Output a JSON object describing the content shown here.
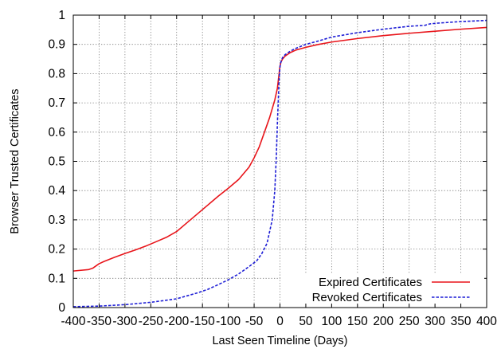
{
  "chart_data": {
    "type": "line",
    "title": "",
    "xlabel": "Last Seen Timeline (Days)",
    "ylabel": "Browser Trusted Certificates",
    "xlim": [
      -400,
      400
    ],
    "ylim": [
      0,
      1
    ],
    "x_ticks": [
      -400,
      -350,
      -300,
      -250,
      -200,
      -150,
      -100,
      -50,
      0,
      50,
      100,
      150,
      200,
      250,
      300,
      350,
      400
    ],
    "x_tick_labels": [
      "-400",
      "-350",
      "-300",
      "-250",
      "-200",
      "-150",
      "-100",
      "-50",
      "0",
      "50",
      "100",
      "150",
      "200",
      "250",
      "300",
      "350",
      "400"
    ],
    "y_ticks": [
      0,
      0.1,
      0.2,
      0.3,
      0.4,
      0.5,
      0.6,
      0.7,
      0.8,
      0.9,
      1
    ],
    "y_tick_labels": [
      "0",
      "0.1",
      "0.2",
      "0.3",
      "0.4",
      "0.5",
      "0.6",
      "0.7",
      "0.8",
      "0.9",
      "1"
    ],
    "grid": true,
    "legend_position": "bottom-right",
    "series": [
      {
        "name": "Expired Certificates",
        "color": "#e8141a",
        "style": "solid",
        "x": [
          -400,
          -370,
          -362,
          -350,
          -340,
          -320,
          -300,
          -280,
          -260,
          -240,
          -220,
          -200,
          -180,
          -160,
          -140,
          -120,
          -100,
          -80,
          -60,
          -50,
          -40,
          -30,
          -20,
          -15,
          -10,
          -5,
          -3,
          -1,
          0,
          2,
          5,
          10,
          20,
          30,
          50,
          75,
          100,
          150,
          200,
          250,
          300,
          350,
          400
        ],
        "y": [
          0.125,
          0.13,
          0.135,
          0.15,
          0.158,
          0.172,
          0.185,
          0.197,
          0.21,
          0.225,
          0.24,
          0.26,
          0.29,
          0.32,
          0.35,
          0.38,
          0.408,
          0.438,
          0.48,
          0.512,
          0.55,
          0.6,
          0.65,
          0.68,
          0.71,
          0.75,
          0.78,
          0.81,
          0.825,
          0.84,
          0.85,
          0.86,
          0.872,
          0.88,
          0.89,
          0.9,
          0.908,
          0.92,
          0.93,
          0.938,
          0.945,
          0.952,
          0.958
        ]
      },
      {
        "name": "Revoked Certificates",
        "color": "#1f1fd6",
        "style": "dashed",
        "x": [
          -400,
          -350,
          -300,
          -250,
          -220,
          -200,
          -180,
          -160,
          -140,
          -120,
          -100,
          -80,
          -60,
          -45,
          -35,
          -25,
          -15,
          -10,
          -7,
          -5,
          -3,
          -2,
          -1,
          0,
          1,
          3,
          5,
          10,
          20,
          30,
          50,
          75,
          100,
          150,
          200,
          250,
          280,
          290,
          300,
          350,
          400
        ],
        "y": [
          0.003,
          0.005,
          0.01,
          0.018,
          0.025,
          0.03,
          0.04,
          0.05,
          0.062,
          0.078,
          0.095,
          0.115,
          0.14,
          0.16,
          0.185,
          0.22,
          0.3,
          0.4,
          0.52,
          0.63,
          0.72,
          0.77,
          0.8,
          0.822,
          0.835,
          0.845,
          0.855,
          0.865,
          0.877,
          0.886,
          0.9,
          0.912,
          0.925,
          0.94,
          0.952,
          0.962,
          0.965,
          0.97,
          0.972,
          0.978,
          0.982
        ]
      }
    ]
  }
}
